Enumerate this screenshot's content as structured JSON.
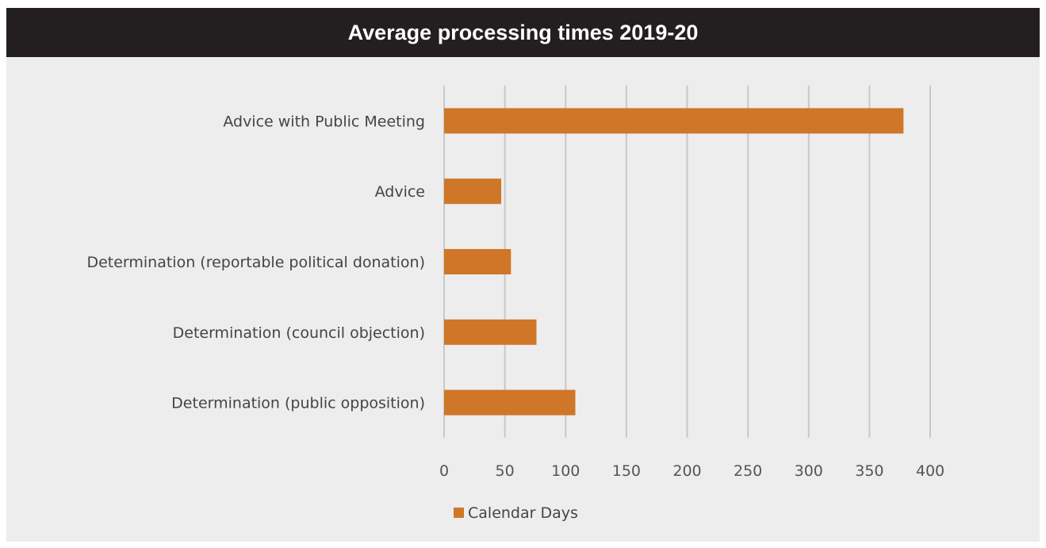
{
  "colors": {
    "bar": "#cf7628",
    "grid": "#c8c8c8",
    "background": "#ededed",
    "header": "#231f20"
  },
  "chart_data": {
    "type": "bar",
    "orientation": "horizontal",
    "title": "Average processing times 2019-20",
    "categories": [
      "Advice with Public Meeting",
      "Advice",
      "Determination (reportable political donation)",
      "Determination (council objection)",
      "Determination (public opposition)"
    ],
    "series": [
      {
        "name": "Calendar Days",
        "values": [
          378,
          47,
          55,
          76,
          108
        ]
      }
    ],
    "xlim": [
      0,
      400
    ],
    "xticks": [
      "0",
      "50",
      "100",
      "150",
      "200",
      "250",
      "300",
      "350",
      "400"
    ],
    "grid": "vertical",
    "legend": "bottom"
  }
}
